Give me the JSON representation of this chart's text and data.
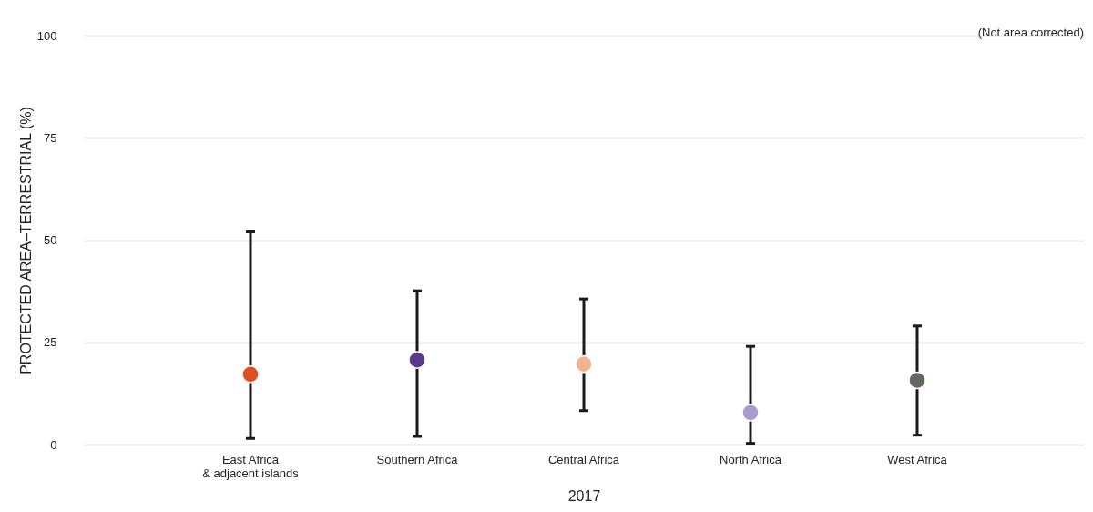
{
  "chart_data": {
    "type": "scatter",
    "xlabel": "2017",
    "ylabel": "PROTECTED AREA–TERRESTRIAL (%)",
    "categories": [
      "East Africa\n& adjacent islands",
      "Southern Africa",
      "Central Africa",
      "North Africa",
      "West Africa"
    ],
    "values": [
      17.2,
      20.7,
      19.7,
      7.8,
      15.7
    ],
    "colors": [
      "#e0501e",
      "#5b3a8c",
      "#f4b28f",
      "#a89bcc",
      "#5e6b5e"
    ],
    "errors": [
      [
        1.5,
        52
      ],
      [
        2,
        37.6
      ],
      [
        8.3,
        35.6
      ],
      [
        0.3,
        24
      ],
      [
        2.3,
        29
      ]
    ],
    "ylim": [
      0,
      100
    ],
    "yticks": [
      0,
      25,
      50,
      75,
      100
    ],
    "grid": "y",
    "marker": "circle",
    "annotations": [
      "(Not area corrected)"
    ]
  }
}
